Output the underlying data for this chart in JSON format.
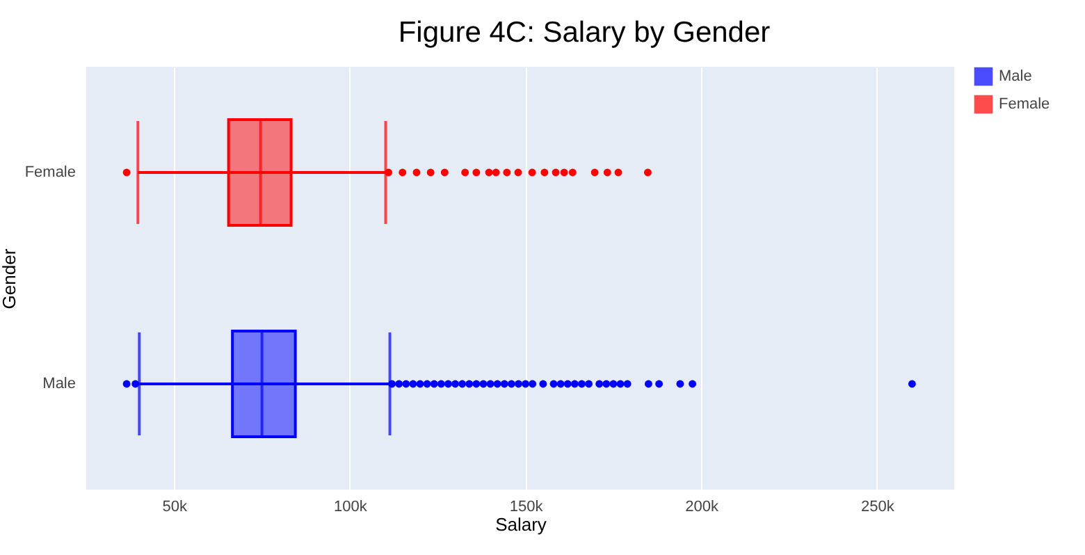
{
  "chart_data": {
    "type": "box",
    "title": "Figure 4C: Salary by Gender",
    "xlabel": "Salary",
    "ylabel": "Gender",
    "orientation": "horizontal",
    "categories": [
      "Female",
      "Male"
    ],
    "series": [
      {
        "name": "Male",
        "color": "#0000ff",
        "boxes": [
          null,
          {
            "low": 40100,
            "q1": 66600,
            "median": 75000,
            "q3": 84500,
            "high": 111400,
            "outliers": [
              36500,
              39000,
              112000,
              114000,
              116000,
              118000,
              120000,
              122000,
              124000,
              126000,
              128000,
              130000,
              132000,
              134000,
              136000,
              138000,
              140000,
              142000,
              144000,
              146000,
              148000,
              150000,
              152000,
              155000,
              158000,
              160000,
              162000,
              164000,
              166000,
              168000,
              171000,
              173000,
              175000,
              177000,
              179000,
              185000,
              188000,
              194000,
              197500,
              260000
            ]
          }
        ]
      },
      {
        "name": "Female",
        "color": "#ff0000",
        "boxes": [
          {
            "low": 39700,
            "q1": 65500,
            "median": 74600,
            "q3": 83300,
            "high": 110200,
            "outliers": [
              36500,
              111000,
              115000,
              119000,
              123000,
              127000,
              132800,
              136000,
              139600,
              141600,
              144700,
              147900,
              151900,
              155400,
              158600,
              161000,
              163400,
              169700,
              173300,
              176400,
              184800
            ]
          },
          null
        ]
      }
    ],
    "xlim": [
      25000,
      272000
    ],
    "xticks": [
      {
        "value": 50000,
        "label": "50k"
      },
      {
        "value": 100000,
        "label": "100k"
      },
      {
        "value": 150000,
        "label": "150k"
      },
      {
        "value": 200000,
        "label": "200k"
      },
      {
        "value": 250000,
        "label": "250k"
      }
    ],
    "grid": "x",
    "legend": "top right",
    "marker": "circle"
  }
}
